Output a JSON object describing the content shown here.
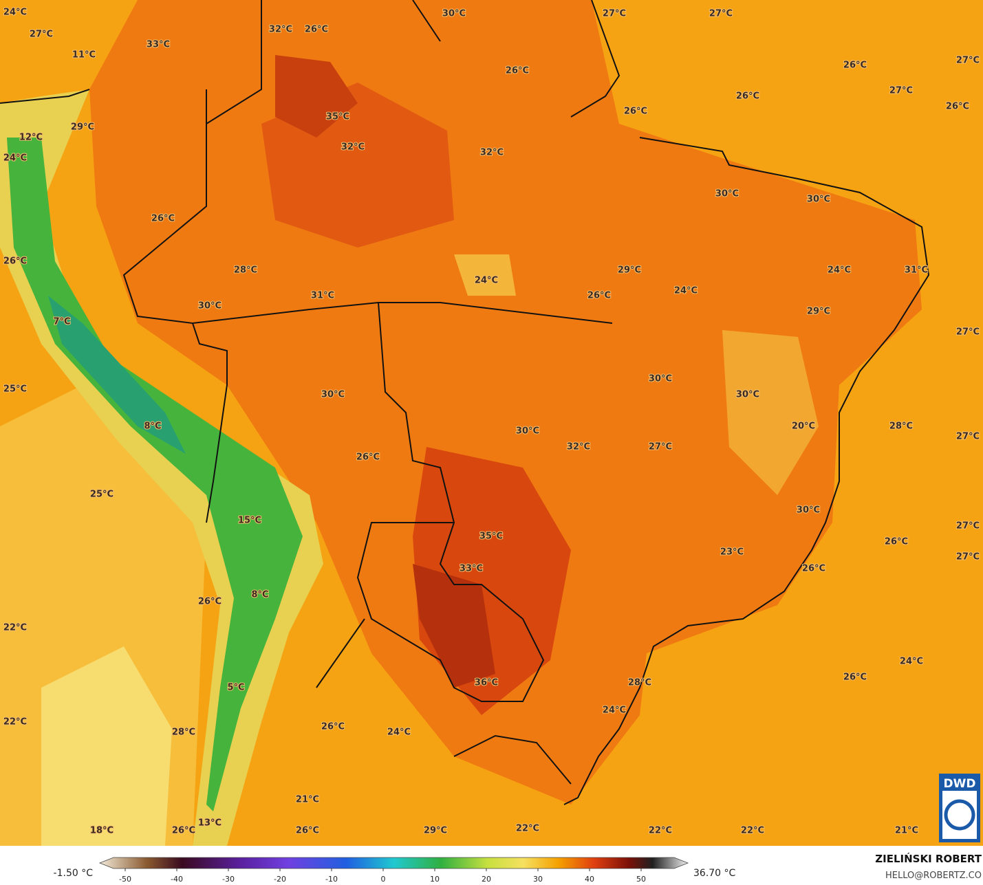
{
  "map": {
    "labels": [
      "24°C",
      "27°C",
      "11°C",
      "33°C",
      "32°C",
      "26°C",
      "30°C",
      "27°C",
      "27°C",
      "26°C",
      "27°C",
      "26°C",
      "27°C",
      "26°C",
      "26°C",
      "26°C",
      "35°C",
      "29°C",
      "12°C",
      "32°C",
      "32°C",
      "24°C",
      "30°C",
      "30°C",
      "26°C",
      "26°C",
      "28°C",
      "29°C",
      "24°C",
      "31°C",
      "24°C",
      "24°C",
      "26°C",
      "31°C",
      "30°C",
      "29°C",
      "7°C",
      "27°C",
      "30°C",
      "25°C",
      "30°C",
      "30°C",
      "8°C",
      "20°C",
      "28°C",
      "30°C",
      "27°C",
      "32°C",
      "27°C",
      "26°C",
      "25°C",
      "30°C",
      "15°C",
      "27°C",
      "35°C",
      "26°C",
      "23°C",
      "27°C",
      "33°C",
      "26°C",
      "8°C",
      "26°C",
      "22°C",
      "24°C",
      "26°C",
      "36°C",
      "28°C",
      "5°C",
      "24°C",
      "22°C",
      "26°C",
      "24°C",
      "28°C",
      "21°C",
      "13°C",
      "18°C",
      "26°C",
      "26°C",
      "29°C",
      "22°C",
      "22°C",
      "22°C",
      "21°C"
    ],
    "colorbar": {
      "ticks": [
        -50,
        -40,
        -30,
        -20,
        -10,
        0,
        10,
        20,
        30,
        40,
        50
      ],
      "min_label": "-1.50 °C",
      "max_label": "36.70 °C"
    },
    "credit": {
      "name": "ZIELIŃSKI ROBERT",
      "contact": "HELLO@ROBERTZ.CO",
      "logo": "DWD"
    }
  }
}
